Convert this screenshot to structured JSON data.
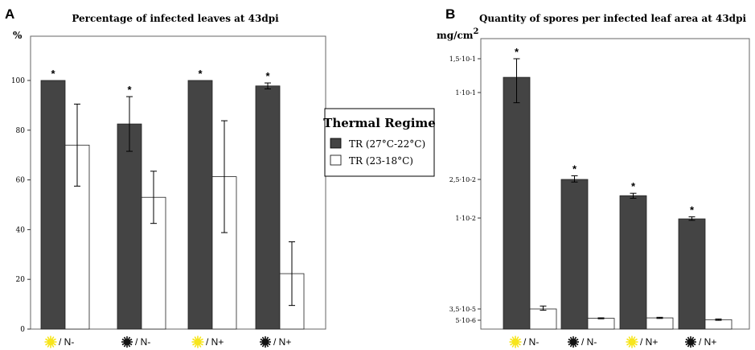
{
  "panel_a": {
    "letter": "A",
    "unit": "%"
  },
  "panel_b": {
    "letter": "B",
    "unit_base": "mg/cm",
    "unit_exp": "2"
  },
  "legend": {
    "title": "Thermal Regime",
    "items": [
      {
        "label": "TR (27°C-22°C)",
        "color": "#444444"
      },
      {
        "label": "TR (23-18°C)",
        "color": "#ffffff"
      }
    ]
  },
  "category_icons": [
    "sun-icon",
    "dark-star-icon",
    "sun-icon",
    "dark-star-icon"
  ],
  "colors": {
    "dark_bar": "#444444",
    "light_bar": "#ffffff",
    "sun": "#f7e51c",
    "dark_icon": "#111111"
  },
  "chart_data": [
    {
      "type": "bar",
      "title": "Percentage of infected leaves at 43dpi",
      "ylabel": "%",
      "ylim": [
        0,
        110
      ],
      "yticks": [
        0,
        20,
        40,
        60,
        80,
        100
      ],
      "categories": [
        "/ N-",
        "/ N-",
        "/ N+",
        "/ N+"
      ],
      "series": [
        {
          "name": "TR (27°C-22°C)",
          "values": [
            100,
            82.5,
            100,
            97.8
          ],
          "errors": [
            0,
            11,
            0,
            1.2
          ],
          "significant": [
            true,
            true,
            true,
            true
          ]
        },
        {
          "name": "TR (23-18°C)",
          "values": [
            74,
            53,
            61.3,
            22.3
          ],
          "errors": [
            16.5,
            10.5,
            22.5,
            12.8
          ],
          "significant": [
            false,
            false,
            false,
            false
          ]
        }
      ]
    },
    {
      "type": "bar",
      "title": "Quantity of spores per infected leaf area at 43dpi",
      "ylabel": "mg/cm2",
      "yscale": "log",
      "ytick_labels": [
        "1,5·10-1",
        "1·10-1",
        "2,5·10-2",
        "1·10-2",
        "3,5·10-5",
        "5·10-6"
      ],
      "categories": [
        "/ N-",
        "/ N-",
        "/ N+",
        "/ N+"
      ],
      "series": [
        {
          "name": "TR (27°C-22°C)",
          "values": [
            0.12,
            0.025,
            0.017,
            0.0095
          ],
          "significant": [
            true,
            true,
            true,
            true
          ]
        },
        {
          "name": "TR (23-18°C)",
          "values": [
            3.5e-05,
            7e-06,
            7.5e-06,
            5.5e-06
          ],
          "significant": [
            false,
            false,
            false,
            false
          ]
        }
      ]
    }
  ]
}
